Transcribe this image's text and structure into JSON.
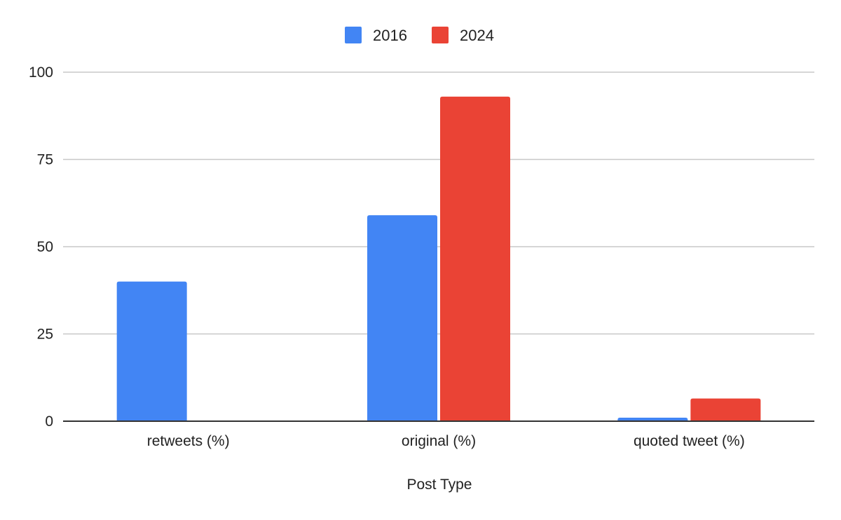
{
  "chart_data": {
    "type": "bar",
    "title": "",
    "xlabel": "Post Type",
    "ylabel": "",
    "categories": [
      "retweets (%)",
      "original (%)",
      "quoted tweet (%)"
    ],
    "series": [
      {
        "name": "2016",
        "color": "#4285F4",
        "values": [
          40,
          59,
          1
        ]
      },
      {
        "name": "2024",
        "color": "#EA4335",
        "values": [
          0,
          93,
          6.5
        ]
      }
    ],
    "ylim": [
      0,
      100
    ],
    "yticks": [
      0,
      25,
      50,
      75,
      100
    ],
    "grid": true,
    "legend_position": "top-center"
  }
}
